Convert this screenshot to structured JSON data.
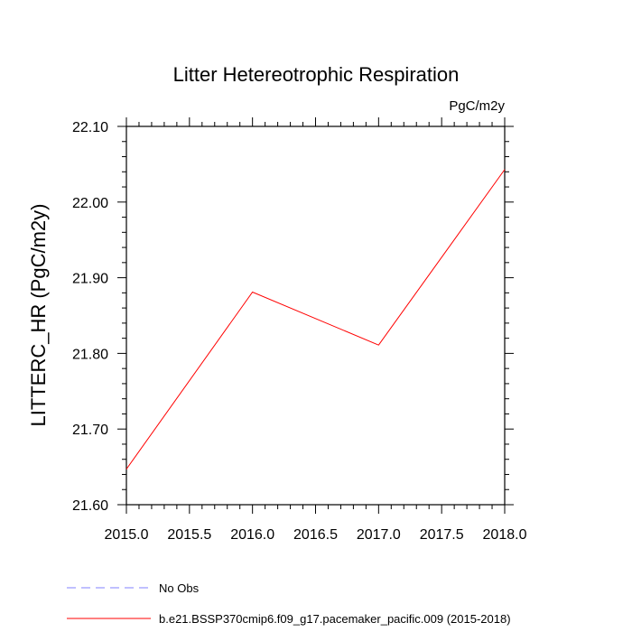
{
  "chart_data": {
    "type": "line",
    "title": "Litter Hetereotrophic Respiration",
    "units": "PgC/m2y",
    "ylabel": "LITTERC_HR  (PgC/m2y)",
    "xlabel": "",
    "xlim": [
      2015.0,
      2018.0
    ],
    "ylim": [
      21.6,
      22.1
    ],
    "x_ticks": [
      {
        "value": 2015.0,
        "label": "2015.0"
      },
      {
        "value": 2015.5,
        "label": "2015.5"
      },
      {
        "value": 2016.0,
        "label": "2016.0"
      },
      {
        "value": 2016.5,
        "label": "2016.5"
      },
      {
        "value": 2017.0,
        "label": "2017.0"
      },
      {
        "value": 2017.5,
        "label": "2017.5"
      },
      {
        "value": 2018.0,
        "label": "2018.0"
      }
    ],
    "y_ticks": [
      {
        "value": 21.6,
        "label": "21.60"
      },
      {
        "value": 21.7,
        "label": "21.70"
      },
      {
        "value": 21.8,
        "label": "21.80"
      },
      {
        "value": 21.9,
        "label": "21.90"
      },
      {
        "value": 22.0,
        "label": "22.00"
      },
      {
        "value": 22.1,
        "label": "22.10"
      }
    ],
    "grid": false,
    "legend_position": "bottom",
    "series": [
      {
        "name": "b.e21.BSSP370cmip6.f09_g17.pacemaker_pacific.009 (2015-2018)",
        "color": "#ff0000",
        "dash": "solid",
        "x": [
          2015.0,
          2016.0,
          2017.0,
          2018.0
        ],
        "values": [
          21.647,
          21.881,
          21.811,
          22.043
        ]
      }
    ],
    "legend": [
      {
        "label": "No Obs",
        "color": "#8080ff",
        "dash": "dashed"
      },
      {
        "label": "b.e21.BSSP370cmip6.f09_g17.pacemaker_pacific.009 (2015-2018)",
        "color": "#ff0000",
        "dash": "solid"
      }
    ]
  }
}
